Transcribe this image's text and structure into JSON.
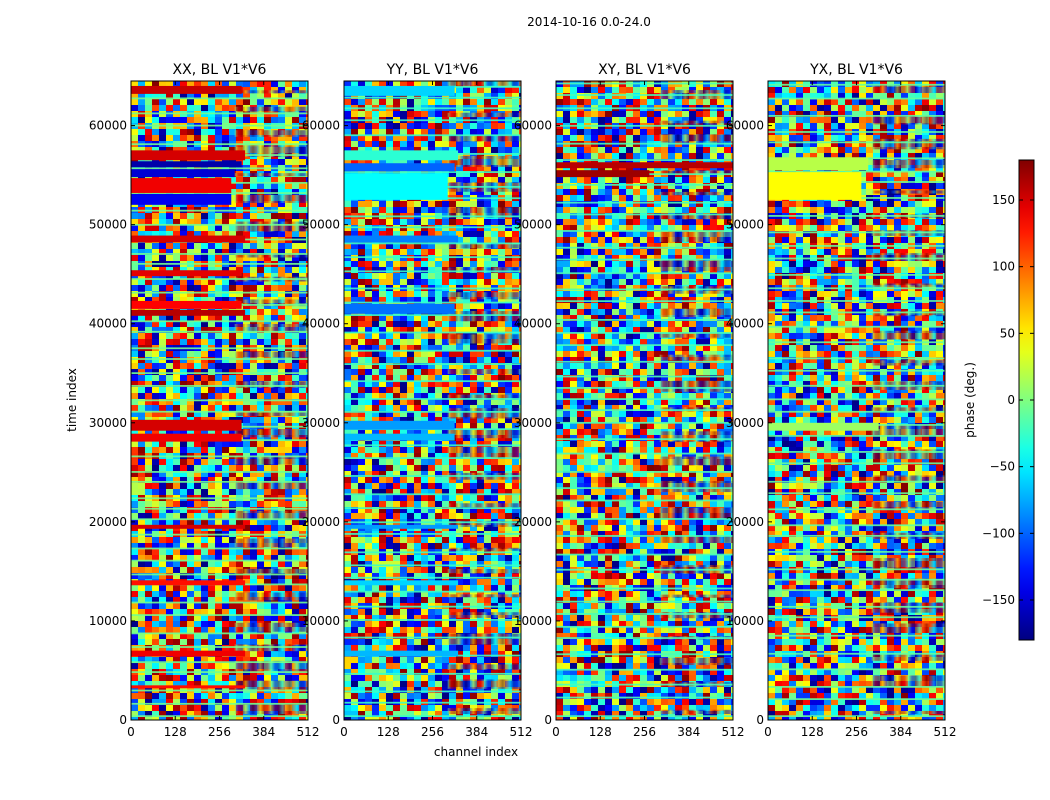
{
  "chart_data": {
    "type": "heatmap",
    "suptitle": "2014-10-16 0.0-24.0",
    "xlabel": "channel index",
    "ylabel": "time index",
    "x_range": [
      0,
      512
    ],
    "y_range": [
      0,
      64500
    ],
    "x_ticks": [
      0,
      128,
      256,
      384,
      512
    ],
    "y_ticks": [
      0,
      10000,
      20000,
      30000,
      40000,
      50000,
      60000
    ],
    "x_tick_labels": [
      "0",
      "128",
      "256",
      "384",
      "512"
    ],
    "y_tick_labels": [
      "0",
      "10000",
      "20000",
      "30000",
      "40000",
      "50000",
      "60000"
    ],
    "colormap": "jet",
    "colorbar": {
      "label": "phase (deg.)",
      "range": [
        -180,
        180
      ],
      "ticks": [
        -150,
        -100,
        -50,
        0,
        50,
        100,
        150
      ],
      "tick_labels": [
        "−150",
        "−100",
        "−50",
        "0",
        "50",
        "100",
        "150"
      ]
    },
    "panels": [
      {
        "id": "xx",
        "title": "XX, BL V1*V6",
        "base_band_phase": -5,
        "bands": [
          {
            "t0": 63200,
            "t1": 64000,
            "phase": 155,
            "c1": 320
          },
          {
            "t0": 56500,
            "t1": 57500,
            "phase": 150,
            "c1": 330
          },
          {
            "t0": 55800,
            "t1": 56400,
            "phase": -165,
            "c1": 320
          },
          {
            "t0": 54800,
            "t1": 55600,
            "phase": -150,
            "c1": 300
          },
          {
            "t0": 53200,
            "t1": 54700,
            "phase": 140,
            "c1": 290
          },
          {
            "t0": 52000,
            "t1": 53100,
            "phase": -140,
            "c1": 290
          },
          {
            "t0": 48200,
            "t1": 48900,
            "phase": 150,
            "c1": 330
          },
          {
            "t0": 44800,
            "t1": 45400,
            "phase": 145,
            "c1": 320
          },
          {
            "t0": 41500,
            "t1": 42300,
            "phase": 135,
            "c1": 320
          },
          {
            "t0": 40800,
            "t1": 41400,
            "phase": 160,
            "c1": 330
          },
          {
            "t0": 29200,
            "t1": 30300,
            "phase": 150,
            "c1": 320
          },
          {
            "t0": 28100,
            "t1": 28900,
            "phase": 140,
            "c1": 320
          },
          {
            "t0": 19300,
            "t1": 19700,
            "phase": 150,
            "c1": 330
          },
          {
            "t0": 13600,
            "t1": 14100,
            "phase": 130,
            "c1": 330
          },
          {
            "t0": 6400,
            "t1": 7000,
            "phase": 140,
            "c1": 330
          },
          {
            "t0": 3200,
            "t1": 3500,
            "phase": 130,
            "c1": 330
          }
        ]
      },
      {
        "id": "yy",
        "title": "YY, BL V1*V6",
        "base_band_phase": -25,
        "bands": [
          {
            "t0": 63000,
            "t1": 64000,
            "phase": -60,
            "c1": 320
          },
          {
            "t0": 56500,
            "t1": 57500,
            "phase": -30,
            "c1": 330
          },
          {
            "t0": 55400,
            "t1": 56200,
            "phase": -100,
            "c1": 320
          },
          {
            "t0": 52500,
            "t1": 55200,
            "phase": -45,
            "c1": 300
          },
          {
            "t0": 48200,
            "t1": 48900,
            "phase": -90,
            "c1": 330
          },
          {
            "t0": 41000,
            "t1": 42000,
            "phase": -95,
            "c1": 320
          },
          {
            "t0": 29300,
            "t1": 30200,
            "phase": -80,
            "c1": 320
          },
          {
            "t0": 28200,
            "t1": 28900,
            "phase": -70,
            "c1": 320
          },
          {
            "t0": 19300,
            "t1": 19700,
            "phase": -80,
            "c1": 330
          },
          {
            "t0": 13600,
            "t1": 14100,
            "phase": -60,
            "c1": 330
          },
          {
            "t0": 6400,
            "t1": 7000,
            "phase": -70,
            "c1": 330
          }
        ]
      },
      {
        "id": "xy",
        "title": "XY, BL V1*V6",
        "base_band_phase": -20,
        "bands": [
          {
            "t0": 55700,
            "t1": 56300,
            "phase": 160,
            "c1": 520
          },
          {
            "t0": 54800,
            "t1": 55500,
            "phase": 170,
            "c1": 270
          }
        ]
      },
      {
        "id": "yx",
        "title": "YX, BL V1*V6",
        "base_band_phase": -10,
        "bands": [
          {
            "t0": 55500,
            "t1": 56800,
            "phase": 20,
            "c1": 290
          },
          {
            "t0": 52500,
            "t1": 55300,
            "phase": 45,
            "c1": 270
          },
          {
            "t0": 29200,
            "t1": 30000,
            "phase": 10,
            "c1": 320
          }
        ]
      }
    ]
  }
}
